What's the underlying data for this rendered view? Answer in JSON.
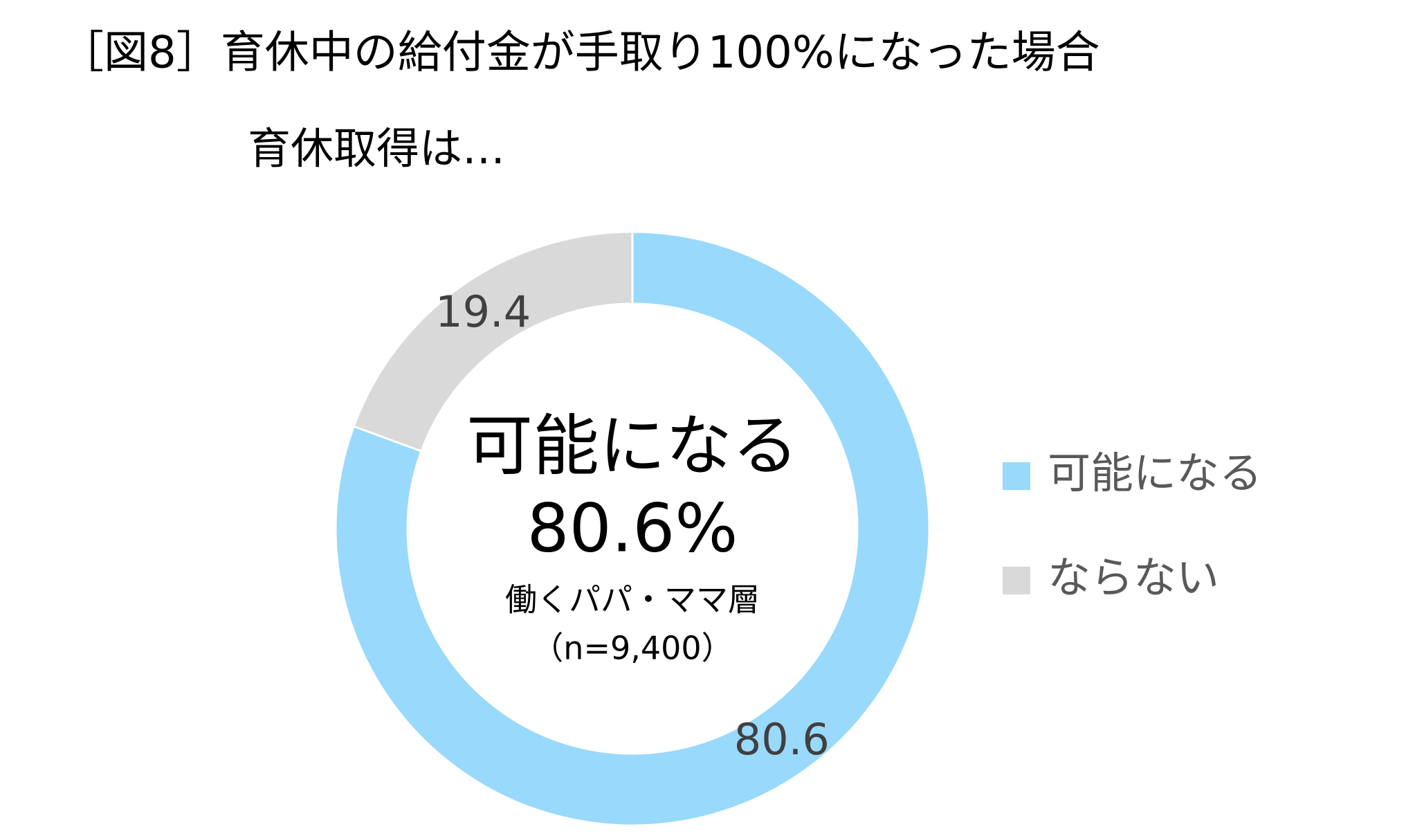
{
  "chart_data": {
    "type": "donut",
    "title": "［図8］育休中の給付金が手取り100%になった場合",
    "subtitle": "育休取得は…",
    "center_text": [
      "可能になる",
      "80.6%",
      "働くパパ・ママ層",
      "（n=9,400）"
    ],
    "categories": [
      "可能になる",
      "ならない"
    ],
    "values": [
      80.6,
      19.4
    ],
    "colors": [
      "#99d9fb",
      "#d9d9d9"
    ],
    "legend": "right"
  }
}
